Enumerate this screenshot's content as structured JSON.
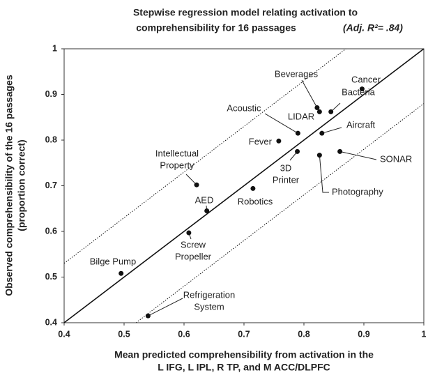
{
  "chart_data": {
    "type": "scatter",
    "title": [
      "Stepwise regression model relating activation to",
      "comprehensibility for 16 passages"
    ],
    "title_stat": "(Adj. R²= .84)",
    "x_label": [
      "Mean predicted comprehensibility from activation in the",
      "L IFG,  L IPL, R TP, and M ACC/DLPFC"
    ],
    "y_label": [
      "Observed comprehensibility of the 16 passages",
      "(proportion correct)"
    ],
    "xlim": [
      0.4,
      1
    ],
    "ylim": [
      0.4,
      1
    ],
    "xticks": [
      0.4,
      0.5,
      0.6,
      0.7,
      0.8,
      0.9,
      1
    ],
    "yticks": [
      0.4,
      0.5,
      0.6,
      0.7,
      0.8,
      0.9,
      1
    ],
    "color": "#111111",
    "labels": [
      [
        "Bilge Pump"
      ],
      [
        "Refrigeration",
        "System"
      ],
      [
        "Screw",
        "Propeller"
      ],
      [
        "AED"
      ],
      [
        "Intellectual",
        "Property"
      ],
      [
        "Robotics"
      ],
      [
        "Fever"
      ],
      [
        "Acoustic"
      ],
      [
        "3D",
        "Printer"
      ],
      [
        "Photography"
      ],
      [
        "SONAR"
      ],
      [
        "Aircraft"
      ],
      [
        "LIDAR"
      ],
      [
        "Beverages"
      ],
      [
        "Bacteria"
      ],
      [
        "Cancer"
      ]
    ],
    "x": [
      0.495,
      0.54,
      0.608,
      0.638,
      0.621,
      0.715,
      0.758,
      0.79,
      0.789,
      0.826,
      0.86,
      0.83,
      0.826,
      0.822,
      0.845,
      0.897
    ],
    "values": [
      0.508,
      0.415,
      0.597,
      0.645,
      0.702,
      0.694,
      0.798,
      0.815,
      0.775,
      0.767,
      0.775,
      0.815,
      0.862,
      0.871,
      0.862,
      0.912
    ],
    "lines": [
      {
        "style": "solid",
        "x": [
          0.4,
          1
        ],
        "y": [
          0.4,
          1
        ]
      },
      {
        "style": "dotted",
        "x": [
          0.4,
          0.87
        ],
        "y": [
          0.53,
          1
        ]
      },
      {
        "style": "dotted",
        "x": [
          0.52,
          1
        ],
        "y": [
          0.4,
          0.88
        ]
      }
    ]
  }
}
